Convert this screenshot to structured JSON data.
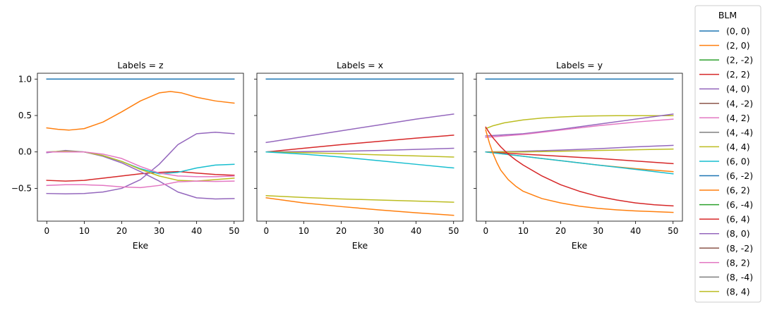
{
  "chart_data": {
    "type": "line",
    "legend": {
      "title": "BLM",
      "placement": "right"
    },
    "series_styles": [
      {
        "name": "(0, 0)",
        "color": "#1f77b4"
      },
      {
        "name": "(2, 0)",
        "color": "#ff7f0e"
      },
      {
        "name": "(2, -2)",
        "color": "#2ca02c"
      },
      {
        "name": "(2, 2)",
        "color": "#d62728"
      },
      {
        "name": "(4, 0)",
        "color": "#9467bd"
      },
      {
        "name": "(4, -2)",
        "color": "#8c564b"
      },
      {
        "name": "(4, 2)",
        "color": "#e377c2"
      },
      {
        "name": "(4, -4)",
        "color": "#7f7f7f"
      },
      {
        "name": "(4, 4)",
        "color": "#bcbd22"
      },
      {
        "name": "(6, 0)",
        "color": "#17becf"
      },
      {
        "name": "(6, -2)",
        "color": "#1f77b4"
      },
      {
        "name": "(6, 2)",
        "color": "#ff7f0e"
      },
      {
        "name": "(6, -4)",
        "color": "#2ca02c"
      },
      {
        "name": "(6, 4)",
        "color": "#d62728"
      },
      {
        "name": "(8, 0)",
        "color": "#9467bd"
      },
      {
        "name": "(8, -2)",
        "color": "#8c564b"
      },
      {
        "name": "(8, 2)",
        "color": "#e377c2"
      },
      {
        "name": "(8, -4)",
        "color": "#7f7f7f"
      },
      {
        "name": "(8, 4)",
        "color": "#bcbd22"
      }
    ],
    "x_ticks": [
      0,
      10,
      20,
      30,
      40,
      50
    ],
    "y_ticks": [
      1.0,
      0.5,
      0.0,
      -0.5
    ],
    "y_tick_labels": [
      "1.0",
      "0.5",
      "0.0",
      "−0.5"
    ],
    "xlim": [
      -2.5,
      52.5
    ],
    "ylim": [
      -0.95,
      1.08
    ],
    "shared_y": true,
    "grid": false,
    "panels": [
      {
        "title": "Labels = z",
        "xlabel": "Eke",
        "series": [
          {
            "name": "(0, 0)",
            "x": [
              0,
              50
            ],
            "y": [
              1.0,
              1.0
            ]
          },
          {
            "name": "(2, 0)",
            "x": [
              0,
              3,
              6,
              10,
              15,
              20,
              25,
              30,
              33,
              36,
              40,
              45,
              50
            ],
            "y": [
              0.33,
              0.31,
              0.3,
              0.32,
              0.41,
              0.55,
              0.7,
              0.81,
              0.83,
              0.81,
              0.75,
              0.7,
              0.67
            ]
          },
          {
            "name": "(6, 4)",
            "x": [
              0,
              5,
              10,
              15,
              20,
              25,
              30,
              35,
              40,
              45,
              50
            ],
            "y": [
              -0.39,
              -0.4,
              -0.39,
              -0.36,
              -0.33,
              -0.3,
              -0.28,
              -0.27,
              -0.29,
              -0.31,
              -0.32
            ]
          },
          {
            "name": "(4, 0)",
            "x": [
              0,
              5,
              10,
              15,
              20,
              25,
              30,
              35,
              40,
              45,
              50
            ],
            "y": [
              -0.57,
              -0.575,
              -0.57,
              -0.55,
              -0.5,
              -0.38,
              -0.17,
              0.1,
              0.25,
              0.27,
              0.25
            ]
          },
          {
            "name": "(8, 0)",
            "x": [
              0,
              5,
              10,
              15,
              20,
              25,
              30,
              35,
              40,
              45,
              50
            ],
            "y": [
              -0.01,
              0.02,
              0.0,
              -0.06,
              -0.15,
              -0.27,
              -0.4,
              -0.55,
              -0.63,
              -0.645,
              -0.64
            ]
          },
          {
            "name": "(6, 0)",
            "x": [
              0,
              5,
              10,
              15,
              20,
              25,
              30,
              35,
              40,
              45,
              50
            ],
            "y": [
              0.0,
              0.01,
              0.0,
              -0.05,
              -0.13,
              -0.23,
              -0.3,
              -0.28,
              -0.22,
              -0.18,
              -0.17
            ]
          },
          {
            "name": "(4, 4)",
            "x": [
              0,
              5,
              10,
              15,
              20,
              25,
              30,
              35,
              40,
              45,
              50
            ],
            "y": [
              0.0,
              0.01,
              0.0,
              -0.05,
              -0.13,
              -0.24,
              -0.33,
              -0.39,
              -0.4,
              -0.38,
              -0.36
            ]
          },
          {
            "name": "(4, 2)",
            "x": [
              0,
              5,
              10,
              15,
              20,
              25,
              30,
              35,
              40,
              45,
              50
            ],
            "y": [
              0.0,
              0.0,
              0.0,
              -0.03,
              -0.09,
              -0.2,
              -0.29,
              -0.33,
              -0.34,
              -0.34,
              -0.33
            ]
          },
          {
            "name": "(8, 2)",
            "x": [
              0,
              5,
              10,
              15,
              20,
              25,
              30,
              35,
              40,
              45,
              50
            ],
            "y": [
              -0.46,
              -0.45,
              -0.45,
              -0.46,
              -0.48,
              -0.49,
              -0.46,
              -0.41,
              -0.4,
              -0.405,
              -0.4
            ]
          }
        ]
      },
      {
        "title": "Labels = x",
        "xlabel": "Eke",
        "series": [
          {
            "name": "(0, 0)",
            "x": [
              0,
              50
            ],
            "y": [
              1.0,
              1.0
            ]
          },
          {
            "name": "(4, 0)",
            "x": [
              0,
              10,
              20,
              30,
              40,
              50
            ],
            "y": [
              0.13,
              0.21,
              0.29,
              0.37,
              0.45,
              0.52
            ]
          },
          {
            "name": "(6, 4)",
            "x": [
              0,
              10,
              20,
              30,
              40,
              50
            ],
            "y": [
              0.0,
              0.05,
              0.1,
              0.145,
              0.19,
              0.23
            ]
          },
          {
            "name": "(8, 0)",
            "x": [
              0,
              10,
              20,
              30,
              40,
              50
            ],
            "y": [
              0.0,
              0.005,
              0.01,
              0.02,
              0.035,
              0.05
            ]
          },
          {
            "name": "(4, 4)",
            "x": [
              0,
              10,
              20,
              30,
              40,
              50
            ],
            "y": [
              0.0,
              -0.01,
              -0.025,
              -0.04,
              -0.055,
              -0.07
            ]
          },
          {
            "name": "(6, 0)",
            "x": [
              0,
              10,
              20,
              30,
              40,
              50
            ],
            "y": [
              0.0,
              -0.03,
              -0.07,
              -0.12,
              -0.17,
              -0.22
            ]
          },
          {
            "name": "(8, 4)",
            "x": [
              0,
              10,
              20,
              30,
              40,
              50
            ],
            "y": [
              -0.6,
              -0.625,
              -0.645,
              -0.66,
              -0.675,
              -0.69
            ]
          },
          {
            "name": "(2, 0)",
            "x": [
              0,
              10,
              20,
              30,
              40,
              50
            ],
            "y": [
              -0.63,
              -0.7,
              -0.75,
              -0.795,
              -0.835,
              -0.87
            ]
          }
        ]
      },
      {
        "title": "Labels = y",
        "xlabel": "Eke",
        "series": [
          {
            "name": "(0, 0)",
            "x": [
              0,
              50
            ],
            "y": [
              1.0,
              1.0
            ]
          },
          {
            "name": "(4, 4)",
            "x": [
              0,
              2,
              5,
              10,
              15,
              20,
              25,
              30,
              35,
              40,
              45,
              50
            ],
            "y": [
              0.32,
              0.36,
              0.4,
              0.44,
              0.465,
              0.48,
              0.49,
              0.495,
              0.497,
              0.497,
              0.497,
              0.497
            ]
          },
          {
            "name": "(4, 0)",
            "x": [
              0,
              10,
              20,
              30,
              40,
              50
            ],
            "y": [
              0.22,
              0.25,
              0.31,
              0.38,
              0.45,
              0.52
            ]
          },
          {
            "name": "(8, 2)",
            "x": [
              0,
              10,
              20,
              30,
              40,
              50
            ],
            "y": [
              0.2,
              0.24,
              0.3,
              0.36,
              0.41,
              0.45
            ]
          },
          {
            "name": "(8, 0)",
            "x": [
              0,
              10,
              20,
              30,
              40,
              50
            ],
            "y": [
              0.0,
              0.01,
              0.025,
              0.045,
              0.07,
              0.09
            ]
          },
          {
            "name": "(8, 4)",
            "x": [
              0,
              10,
              20,
              30,
              40,
              50
            ],
            "y": [
              0.0,
              0.0,
              0.01,
              0.02,
              0.03,
              0.04
            ]
          },
          {
            "name": "(6, 4)",
            "x": [
              0,
              10,
              20,
              30,
              40,
              50
            ],
            "y": [
              0.0,
              -0.03,
              -0.06,
              -0.09,
              -0.125,
              -0.16
            ]
          },
          {
            "name": "(2, 0)",
            "x": [
              0,
              10,
              20,
              30,
              40,
              50
            ],
            "y": [
              0.0,
              -0.06,
              -0.12,
              -0.18,
              -0.23,
              -0.27
            ]
          },
          {
            "name": "(6, 0)",
            "x": [
              0,
              10,
              20,
              30,
              40,
              50
            ],
            "y": [
              0.0,
              -0.06,
              -0.12,
              -0.18,
              -0.24,
              -0.3
            ]
          },
          {
            "name": "(2, 2)",
            "x": [
              0,
              1,
              2,
              4,
              6,
              8,
              10,
              15,
              20,
              25,
              30,
              35,
              40,
              45,
              50
            ],
            "y": [
              0.34,
              0.26,
              0.19,
              0.07,
              -0.03,
              -0.11,
              -0.18,
              -0.33,
              -0.45,
              -0.54,
              -0.61,
              -0.66,
              -0.7,
              -0.725,
              -0.74
            ]
          },
          {
            "name": "(6, 2)",
            "x": [
              0,
              1,
              2,
              3,
              4,
              6,
              8,
              10,
              15,
              20,
              25,
              30,
              35,
              40,
              45,
              50
            ],
            "y": [
              0.3,
              0.12,
              -0.03,
              -0.15,
              -0.25,
              -0.38,
              -0.47,
              -0.54,
              -0.64,
              -0.7,
              -0.745,
              -0.775,
              -0.795,
              -0.81,
              -0.82,
              -0.83
            ]
          }
        ]
      }
    ]
  }
}
